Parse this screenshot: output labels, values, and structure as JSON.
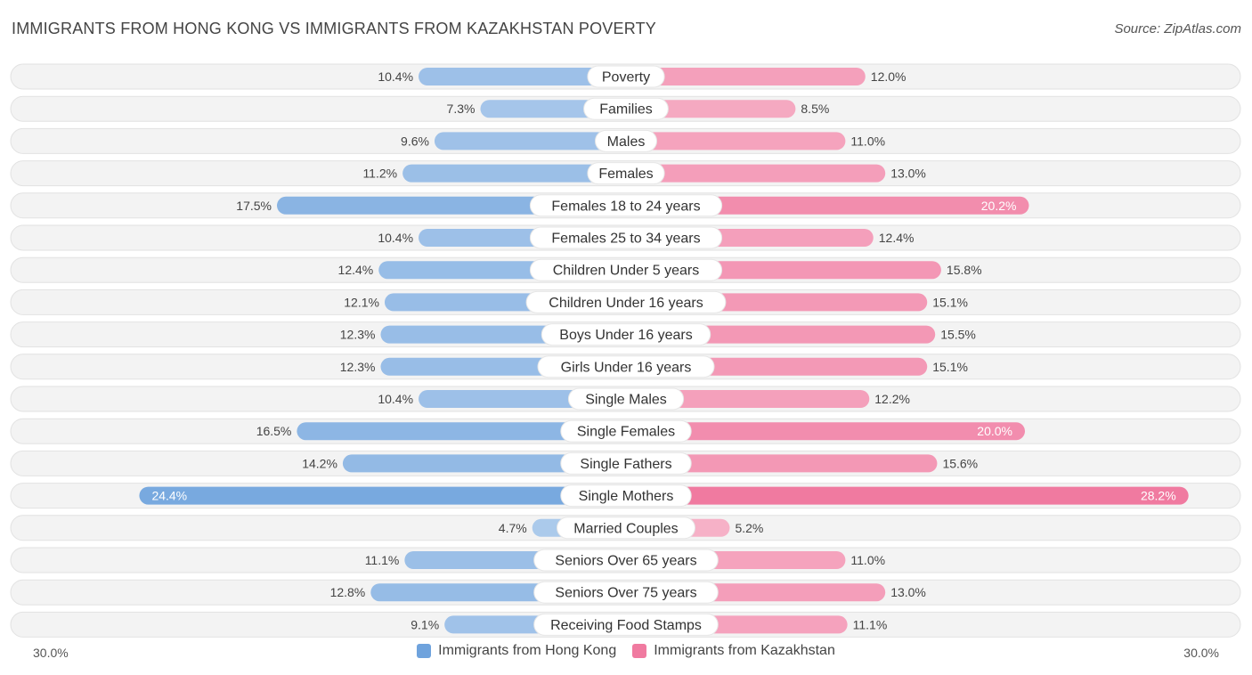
{
  "header": {
    "title": "IMMIGRANTS FROM HONG KONG VS IMMIGRANTS FROM KAZAKHSTAN POVERTY",
    "source": "Source: ZipAtlas.com"
  },
  "axis": {
    "left_label": "30.0%",
    "right_label": "30.0%"
  },
  "legend": {
    "left": {
      "label": "Immigrants from Hong Kong",
      "color": "#6fa3dd"
    },
    "right": {
      "label": "Immigrants from Kazakhstan",
      "color": "#f07aa0"
    }
  },
  "chart_data": {
    "type": "bar",
    "orientation": "diverging-horizontal",
    "title": "IMMIGRANTS FROM HONG KONG VS IMMIGRANTS FROM KAZAKHSTAN POVERTY",
    "xlim": [
      -30,
      30
    ],
    "value_suffix": "%",
    "categories": [
      "Poverty",
      "Families",
      "Males",
      "Females",
      "Females 18 to 24 years",
      "Females 25 to 34 years",
      "Children Under 5 years",
      "Children Under 16 years",
      "Boys Under 16 years",
      "Girls Under 16 years",
      "Single Males",
      "Single Females",
      "Single Fathers",
      "Single Mothers",
      "Married Couples",
      "Seniors Over 65 years",
      "Seniors Over 75 years",
      "Receiving Food Stamps"
    ],
    "series": [
      {
        "name": "Immigrants from Hong Kong",
        "color": "#6fa3dd",
        "values": [
          10.4,
          7.3,
          9.6,
          11.2,
          17.5,
          10.4,
          12.4,
          12.1,
          12.3,
          12.3,
          10.4,
          16.5,
          14.2,
          24.4,
          4.7,
          11.1,
          12.8,
          9.1
        ],
        "labels": [
          "10.4%",
          "7.3%",
          "9.6%",
          "11.2%",
          "17.5%",
          "10.4%",
          "12.4%",
          "12.1%",
          "12.3%",
          "12.3%",
          "10.4%",
          "16.5%",
          "14.2%",
          "24.4%",
          "4.7%",
          "11.1%",
          "12.8%",
          "9.1%"
        ]
      },
      {
        "name": "Immigrants from Kazakhstan",
        "color": "#f07aa0",
        "values": [
          12.0,
          8.5,
          11.0,
          13.0,
          20.2,
          12.4,
          15.8,
          15.1,
          15.5,
          15.1,
          12.2,
          20.0,
          15.6,
          28.2,
          5.2,
          11.0,
          13.0,
          11.1
        ],
        "labels": [
          "12.0%",
          "8.5%",
          "11.0%",
          "13.0%",
          "20.2%",
          "12.4%",
          "15.8%",
          "15.1%",
          "15.5%",
          "15.1%",
          "12.2%",
          "20.0%",
          "15.6%",
          "28.2%",
          "5.2%",
          "11.0%",
          "13.0%",
          "11.1%"
        ]
      }
    ]
  }
}
